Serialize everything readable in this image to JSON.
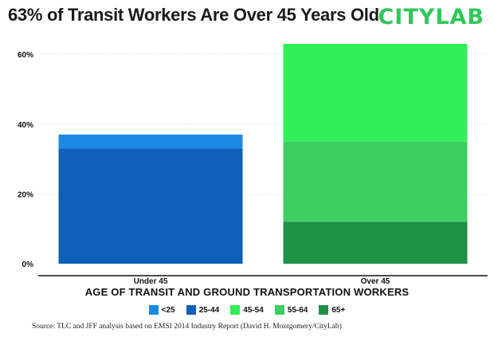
{
  "header": {
    "title": "63% of Transit Workers Are Over 45 Years Old",
    "brand": "CITYLAB"
  },
  "chart_data": {
    "type": "bar",
    "stacked": true,
    "categories": [
      "Under 45",
      "Over 45"
    ],
    "series": [
      {
        "name": "<25",
        "color": "#1e88e5",
        "values": [
          4,
          0
        ]
      },
      {
        "name": "25-44",
        "color": "#0d5fb8",
        "values": [
          33,
          0
        ]
      },
      {
        "name": "45-54",
        "color": "#2fee5a",
        "values": [
          0,
          28
        ]
      },
      {
        "name": "55-64",
        "color": "#3dcf62",
        "values": [
          0,
          23
        ]
      },
      {
        "name": "65+",
        "color": "#1e9147",
        "values": [
          0,
          12
        ]
      }
    ],
    "xlabel": "AGE OF TRANSIT AND GROUND TRANSPORTATION WORKERS",
    "ylabel": "",
    "ylim": [
      0,
      63
    ],
    "yticks": [
      0,
      20,
      40,
      60
    ],
    "ytick_labels": [
      "0%",
      "20%",
      "40%",
      "60%"
    ],
    "grid": true,
    "legend_position": "bottom-center"
  },
  "footer": {
    "source": "Source: TLC and JFF analysis based on EMSI 2014 Industry Report (David H. Montgomery/CityLab)"
  }
}
